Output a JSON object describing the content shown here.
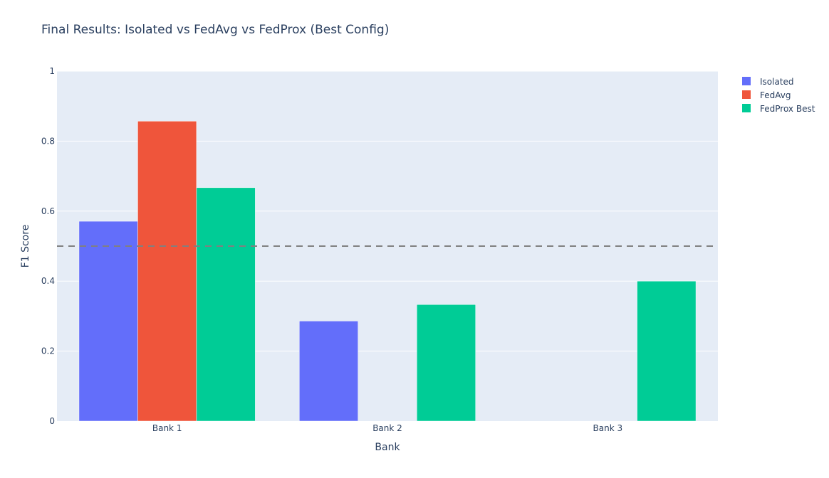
{
  "chart_data": {
    "type": "bar",
    "title": "Final Results: Isolated vs FedAvg vs FedProx (Best Config)",
    "xlabel": "Bank",
    "ylabel": "F1 Score",
    "ylim": [
      0,
      1
    ],
    "yticks": [
      0,
      0.2,
      0.4,
      0.6,
      0.8,
      1
    ],
    "ytick_labels": [
      "0",
      "0.2",
      "0.4",
      "0.6",
      "0.8",
      "1"
    ],
    "categories": [
      "Bank 1",
      "Bank 2",
      "Bank 3"
    ],
    "series": [
      {
        "name": "Isolated",
        "color": "#636efa",
        "values": [
          0.571,
          0.286,
          0
        ]
      },
      {
        "name": "FedAvg",
        "color": "#ef553b",
        "values": [
          0.857,
          0,
          0
        ]
      },
      {
        "name": "FedProx Best",
        "color": "#00cc96",
        "values": [
          0.667,
          0.333,
          0.4
        ]
      }
    ],
    "reference_line": {
      "y": 0.5,
      "style": "dashed",
      "color": "#808080"
    },
    "grid": true,
    "legend_position": "top-right",
    "plot_background": "#e5ecf6"
  }
}
